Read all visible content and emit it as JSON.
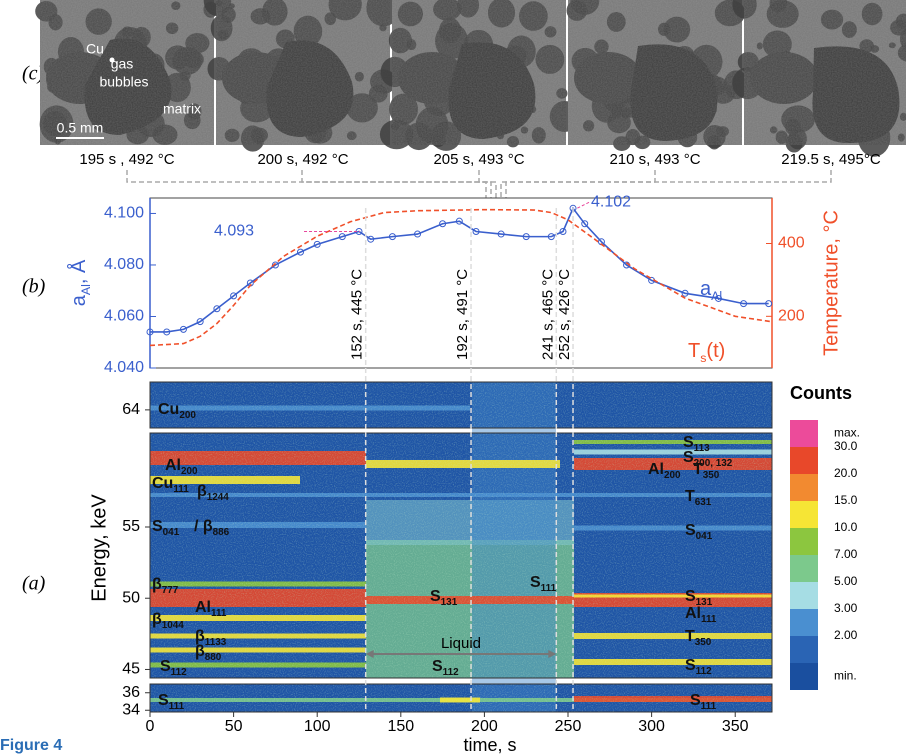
{
  "figure_label": "Figure 4",
  "panel_c": {
    "label": "(c)",
    "captions": [
      "195 s , 492 °C",
      "200 s, 492 °C",
      "205 s, 493 °C",
      "210 s, 493 °C",
      "219.5 s, 495°C"
    ],
    "annotations": [
      "Cu",
      "gas",
      "bubbles",
      "matrix",
      "0.5 mm"
    ]
  },
  "chart_data": [
    {
      "type": "line",
      "panel_label": "(b)",
      "y_label": {
        "symbol": "a",
        "sub": "Al",
        "unit": ", Å"
      },
      "y2_label": "Temperature, °C",
      "xlim": [
        0,
        372
      ],
      "ylim": [
        4.04,
        4.106
      ],
      "yticks": [
        {
          "value": 4.04,
          "label": "4.040"
        },
        {
          "value": 4.06,
          "label": "4.060"
        },
        {
          "value": 4.08,
          "label": "4.080"
        },
        {
          "value": 4.1,
          "label": "4.100"
        }
      ],
      "y2lim": [
        58,
        525
      ],
      "y2ticks": [
        200,
        400
      ],
      "series": [
        {
          "name": "a",
          "name_sub": "Al",
          "color": "#3a5fcd",
          "x": [
            0,
            10,
            20,
            30,
            40,
            50,
            60,
            75,
            90,
            100,
            115,
            125,
            132,
            145,
            160,
            175,
            185,
            195,
            210,
            225,
            240,
            247,
            253,
            260,
            270,
            285,
            300,
            320,
            340,
            355,
            370
          ],
          "values": [
            4.054,
            4.054,
            4.055,
            4.058,
            4.063,
            4.068,
            4.073,
            4.08,
            4.085,
            4.088,
            4.091,
            4.093,
            4.09,
            4.091,
            4.092,
            4.096,
            4.097,
            4.093,
            4.092,
            4.091,
            4.091,
            4.093,
            4.102,
            4.096,
            4.089,
            4.08,
            4.074,
            4.069,
            4.067,
            4.065,
            4.065
          ]
        },
        {
          "name": "T",
          "name_sub": "s",
          "name_suffix": "(t)",
          "color": "#f0502a",
          "axis": "y2",
          "x": [
            0,
            20,
            30,
            40,
            50,
            60,
            80,
            100,
            120,
            140,
            160,
            200,
            230,
            240,
            250,
            265,
            290,
            320,
            350,
            372
          ],
          "values": [
            120,
            125,
            145,
            180,
            230,
            285,
            365,
            420,
            460,
            485,
            490,
            493,
            492,
            485,
            465,
            415,
            330,
            250,
            200,
            185
          ]
        }
      ],
      "peak_labels": [
        {
          "x": 128,
          "value": 4.093
        },
        {
          "x": 253,
          "value": 4.102
        }
      ],
      "markers": [
        {
          "x": 129,
          "label": "152 s, 445 °C"
        },
        {
          "x": 192,
          "label": "192 s, 491 °C"
        },
        {
          "x": 243,
          "label": "241 s, 465 °C"
        },
        {
          "x": 253,
          "label": "252 s, 426 °C"
        }
      ]
    },
    {
      "type": "heatmap",
      "panel_label": "(a)",
      "x_label": "time, s",
      "y_label": "Energy, keV",
      "xlim": [
        0,
        372
      ],
      "xticks": [
        0,
        50,
        100,
        150,
        200,
        250,
        300,
        350
      ],
      "y_segments": [
        {
          "ylim": [
            62.7,
            66
          ],
          "yticks": [
            64
          ]
        },
        {
          "ylim": [
            44.4,
            61.6
          ],
          "yticks": [
            45,
            50,
            55
          ]
        },
        {
          "ylim": [
            33.8,
            37
          ],
          "yticks": [
            34,
            36
          ]
        }
      ],
      "colorbar": {
        "title": "Counts",
        "levels": [
          {
            "label": "max.",
            "color": "#ec4b9a"
          },
          {
            "label": "30.0",
            "color": "#e8482a"
          },
          {
            "label": "20.0",
            "color": "#f28a30"
          },
          {
            "label": "15.0",
            "color": "#f6e535"
          },
          {
            "label": "10.0",
            "color": "#8cc63f"
          },
          {
            "label": "7.00",
            "color": "#7cc98c"
          },
          {
            "label": "5.00",
            "color": "#a6dde4"
          },
          {
            "label": "3.00",
            "color": "#4a8fd0"
          },
          {
            "label": "2.00",
            "color": "#2a64b4"
          },
          {
            "label": "min.",
            "color": "#1a4f9f"
          }
        ]
      },
      "region_label": "Liquid",
      "peak_labels": [
        {
          "text": "Cu",
          "sub": "200"
        },
        {
          "text": "Al",
          "sub": "200"
        },
        {
          "text": "Cu",
          "sub": "111"
        },
        {
          "text": "β",
          "sub": "1244"
        },
        {
          "text": "S",
          "sub": "041"
        },
        {
          "text": "/ β",
          "sub": "886"
        },
        {
          "text": "β",
          "sub": "777"
        },
        {
          "text": "Al",
          "sub": "111"
        },
        {
          "text": "β",
          "sub": "1044"
        },
        {
          "text": "β",
          "sub": "1133"
        },
        {
          "text": "β",
          "sub": "880"
        },
        {
          "text": "S",
          "sub": "112"
        },
        {
          "text": "S",
          "sub": "111"
        },
        {
          "text": "S",
          "sub": "131"
        },
        {
          "text": "S",
          "sub": "111"
        },
        {
          "text": "S",
          "sub": "112"
        },
        {
          "text": "S",
          "sub": "113"
        },
        {
          "text": "S",
          "sub": "200, 132"
        },
        {
          "text": "Al",
          "sub": "200"
        },
        {
          "text": "T",
          "sub": "350"
        },
        {
          "text": "T",
          "sub": "631"
        },
        {
          "text": "S",
          "sub": "041"
        },
        {
          "text": "S",
          "sub": "131"
        },
        {
          "text": "Al",
          "sub": "111"
        },
        {
          "text": "T",
          "sub": "350"
        },
        {
          "text": "S",
          "sub": "112"
        },
        {
          "text": "S",
          "sub": "111"
        }
      ]
    }
  ]
}
